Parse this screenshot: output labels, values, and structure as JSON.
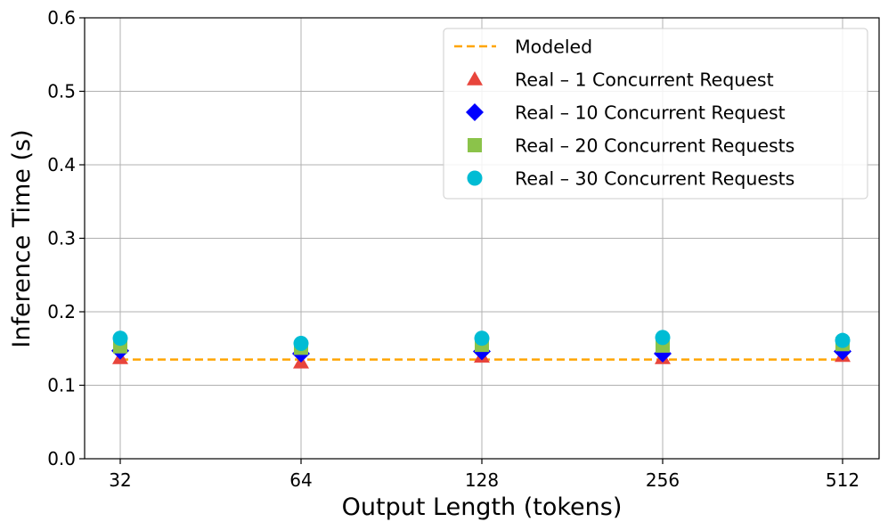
{
  "chart_data": {
    "type": "scatter",
    "title": "",
    "xlabel": "Output Length (tokens)",
    "ylabel": "Inference Time (s)",
    "categories": [
      "32",
      "64",
      "128",
      "256",
      "512"
    ],
    "ylim": [
      0,
      0.6
    ],
    "yticks": [
      "0.0",
      "0.1",
      "0.2",
      "0.3",
      "0.4",
      "0.5",
      "0.6"
    ],
    "grid": true,
    "legend_position": "top-right",
    "series": [
      {
        "name": "Modeled",
        "kind": "line",
        "style": "dashed",
        "color": "#FFA500",
        "values": [
          0.135,
          0.135,
          0.135,
          0.135,
          0.135
        ]
      },
      {
        "name": "Real – 1 Concurrent Request",
        "kind": "marker",
        "marker": "triangle",
        "color": "#E8453C",
        "values": [
          0.137,
          0.131,
          0.139,
          0.137,
          0.14
        ]
      },
      {
        "name": "Real – 10 Concurrent Request",
        "kind": "marker",
        "marker": "diamond",
        "color": "#0000FF",
        "values": [
          0.147,
          0.143,
          0.146,
          0.143,
          0.146
        ]
      },
      {
        "name": "Real – 20 Concurrent Requests",
        "kind": "marker",
        "marker": "square",
        "color": "#8BC34A",
        "values": [
          0.153,
          0.151,
          0.155,
          0.154,
          0.156
        ]
      },
      {
        "name": "Real – 30 Concurrent Requests",
        "kind": "marker",
        "marker": "circle",
        "color": "#00BCD4",
        "values": [
          0.164,
          0.157,
          0.164,
          0.165,
          0.161
        ]
      }
    ]
  }
}
